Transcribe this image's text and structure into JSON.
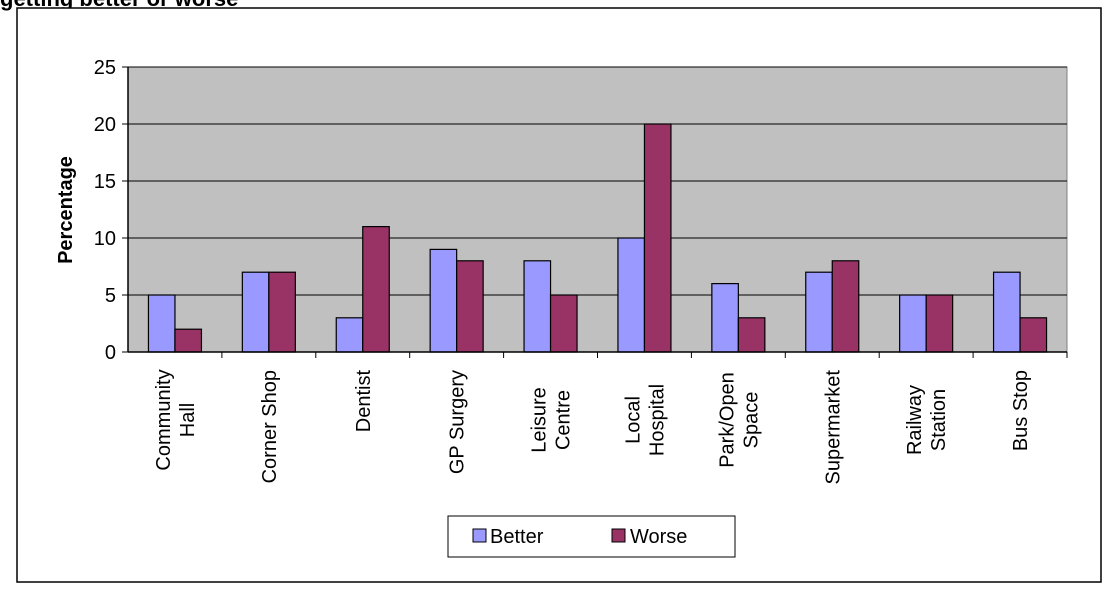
{
  "top_text": "getting better or worse",
  "chart_data": {
    "type": "bar",
    "ylabel": "Percentage",
    "ylim": [
      0,
      25
    ],
    "yticks": [
      0,
      5,
      10,
      15,
      20,
      25
    ],
    "grid": true,
    "legend_position": "bottom",
    "categories": [
      [
        "Community",
        "Hall"
      ],
      [
        "Corner Shop"
      ],
      [
        "Dentist"
      ],
      [
        "GP Surgery"
      ],
      [
        "Leisure",
        "Centre"
      ],
      [
        "Local",
        "Hospital"
      ],
      [
        "Park/Open",
        "Space"
      ],
      [
        "Supermarket"
      ],
      [
        "Railway",
        "Station"
      ],
      [
        "Bus Stop"
      ]
    ],
    "series": [
      {
        "name": "Better",
        "color": "#9999ff",
        "values": [
          5,
          7,
          3,
          9,
          8,
          10,
          6,
          7,
          5,
          7
        ]
      },
      {
        "name": "Worse",
        "color": "#993366",
        "values": [
          2,
          7,
          11,
          8,
          5,
          20,
          3,
          8,
          5,
          3
        ]
      }
    ],
    "plot_background": "#c0c0c0"
  }
}
